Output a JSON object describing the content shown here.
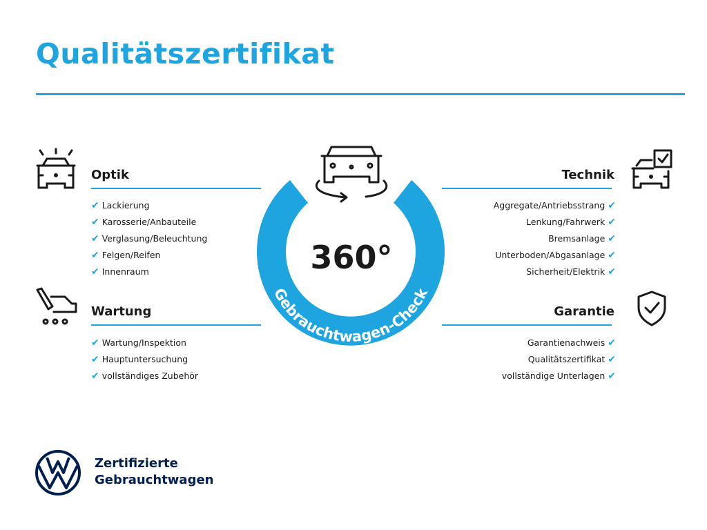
{
  "title": "Qualitätszertifikat",
  "accent_color": "#1ea5e0",
  "brand_color": "#001e50",
  "center": {
    "label": "360°",
    "ring_text": "Gebrauchtwagen-Check",
    "icon": "rotating-car-icon"
  },
  "check_icon": "✔",
  "sections": {
    "optik": {
      "heading": "Optik",
      "icon": "car-lights-icon",
      "items": [
        "Lackierung",
        "Karosserie/Anbauteile",
        "Verglasung/Beleuchtung",
        "Felgen/Reifen",
        "Innenraum"
      ]
    },
    "wartung": {
      "heading": "Wartung",
      "icon": "service-tools-icon",
      "items": [
        "Wartung/Inspektion",
        "Hauptuntersuchung",
        "vollständiges Zubehör"
      ]
    },
    "technik": {
      "heading": "Technik",
      "icon": "car-checklist-icon",
      "items": [
        "Aggregate/Antriebsstrang",
        "Lenkung/Fahrwerk",
        "Bremsanlage",
        "Unterboden/Abgasanlage",
        "Sicherheit/Elektrik"
      ]
    },
    "garantie": {
      "heading": "Garantie",
      "icon": "shield-check-icon",
      "items": [
        "Garantienachweis",
        "Qualitätszertifikat",
        "vollständige Unterlagen"
      ]
    }
  },
  "footer": {
    "line1": "Zertifizierte",
    "line2": "Gebrauchtwagen",
    "logo": "vw-logo"
  }
}
